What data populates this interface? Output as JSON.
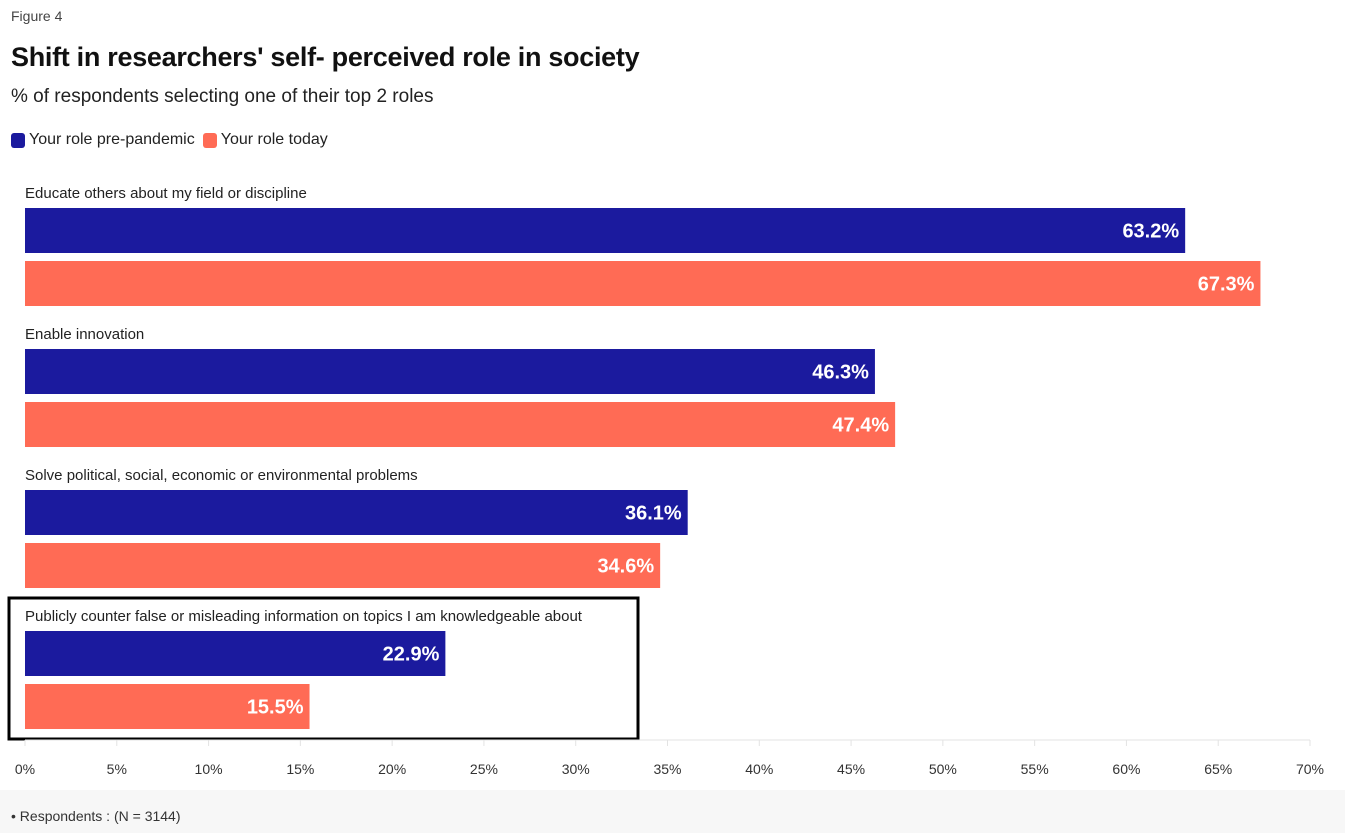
{
  "figure_label": "Figure 4",
  "chart_data": {
    "type": "bar",
    "orientation": "horizontal",
    "title": "Shift in researchers' self- perceived role in society",
    "subtitle": "% of respondents selecting one of their top 2 roles",
    "categories": [
      "Educate others about my field or discipline",
      "Enable innovation",
      "Solve political, social, economic or environmental problems",
      "Publicly counter false or misleading information on topics I am knowledgeable about"
    ],
    "series": [
      {
        "name": "Your role pre-pandemic",
        "color": "#1b1a9e",
        "values": [
          63.2,
          46.3,
          36.1,
          22.9
        ]
      },
      {
        "name": "Your role today",
        "color": "#ff6b55",
        "values": [
          67.3,
          47.4,
          34.6,
          15.5
        ]
      }
    ],
    "xlim": [
      0,
      70
    ],
    "xticks": [
      0,
      5,
      10,
      15,
      20,
      25,
      30,
      35,
      40,
      45,
      50,
      55,
      60,
      65,
      70
    ],
    "tick_suffix": "%",
    "value_suffix": "%",
    "legend_position": "top-left",
    "highlighted_category": "Publicly counter false or misleading information on topics I am knowledgeable about",
    "grid": false
  },
  "footnote": "• Respondents : (N = 3144)"
}
